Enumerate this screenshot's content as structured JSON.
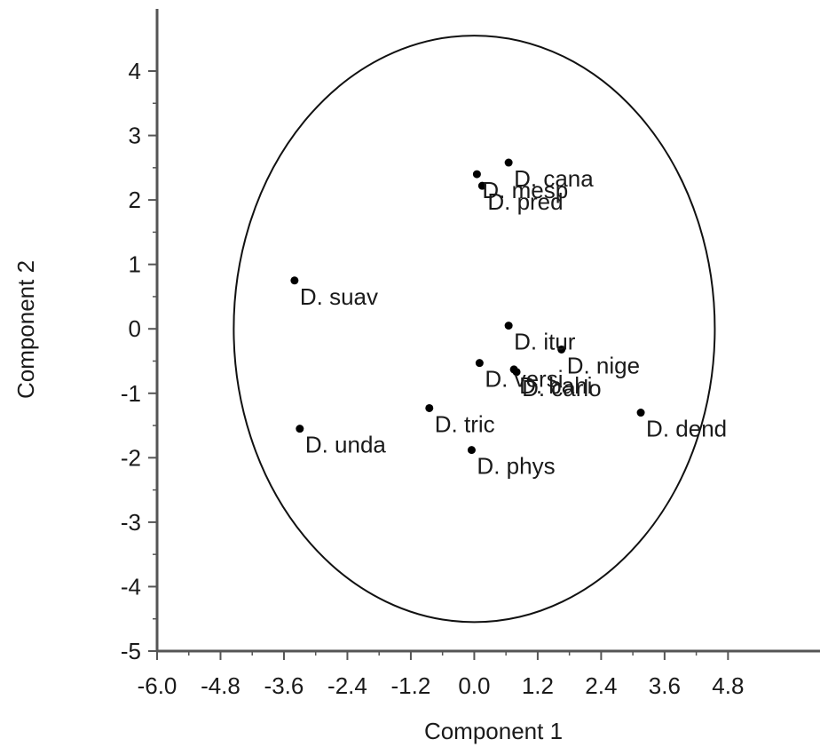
{
  "chart_data": {
    "type": "scatter",
    "title": "",
    "xlabel": "Component 1",
    "ylabel": "Component 2",
    "xlim": [
      -6.0,
      5.6
    ],
    "ylim": [
      -5,
      4.8
    ],
    "x_ticks": [
      "-6.0",
      "-4.8",
      "-3.6",
      "-2.4",
      "-1.2",
      "0.0",
      "1.2",
      "2.4",
      "3.6",
      "4.8"
    ],
    "y_ticks": [
      "4",
      "3",
      "2",
      "1",
      "0",
      "-1",
      "-2",
      "-3",
      "-4",
      "-5"
    ],
    "grid": false,
    "circle": {
      "center": [
        0.0,
        0.0
      ],
      "radius": 4.55
    },
    "points": [
      {
        "label": "D. cana",
        "x": 0.65,
        "y": 2.58
      },
      {
        "label": "D. mesp",
        "x": 0.05,
        "y": 2.4
      },
      {
        "label": "D. pred",
        "x": 0.15,
        "y": 2.22
      },
      {
        "label": "D. suav",
        "x": -3.4,
        "y": 0.75
      },
      {
        "label": "D. itur",
        "x": 0.65,
        "y": 0.05
      },
      {
        "label": "D. nige",
        "x": 1.65,
        "y": -0.32
      },
      {
        "label": "D. versi",
        "x": 0.1,
        "y": -0.53
      },
      {
        "label": "D. bahi",
        "x": 0.75,
        "y": -0.63
      },
      {
        "label": "D. carlo",
        "x": 0.8,
        "y": -0.67
      },
      {
        "label": "D. dend",
        "x": 3.15,
        "y": -1.3
      },
      {
        "label": "D. tric",
        "x": -0.85,
        "y": -1.23
      },
      {
        "label": "D. unda",
        "x": -3.3,
        "y": -1.55
      },
      {
        "label": "D. phys",
        "x": -0.05,
        "y": -1.88
      }
    ]
  }
}
